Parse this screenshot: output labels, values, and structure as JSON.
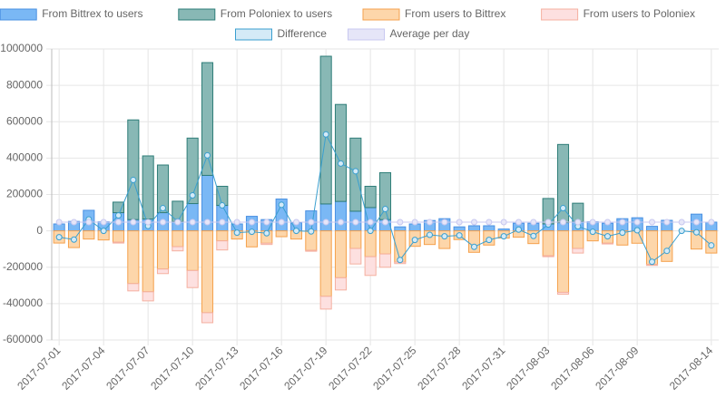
{
  "chart_data": {
    "type": "bar",
    "categories": [
      "2017-07-01",
      null,
      null,
      "2017-07-04",
      null,
      null,
      "2017-07-07",
      null,
      null,
      "2017-07-10",
      null,
      null,
      "2017-07-13",
      null,
      null,
      "2017-07-16",
      null,
      null,
      "2017-07-19",
      null,
      null,
      "2017-07-22",
      null,
      null,
      "2017-07-25",
      null,
      null,
      "2017-07-28",
      null,
      null,
      "2017-07-31",
      null,
      null,
      "2017-08-03",
      null,
      null,
      "2017-08-06",
      null,
      null,
      "2017-08-09",
      null,
      null,
      null,
      null,
      "2017-08-14"
    ],
    "series": [
      {
        "name": "From Bittrex to users",
        "color": "#7ab8f5",
        "border": "#4a90e2",
        "stack": "pos",
        "values": [
          38000,
          52000,
          113000,
          50000,
          100000,
          62000,
          65000,
          100000,
          50000,
          150000,
          305000,
          140000,
          38000,
          80000,
          62000,
          175000,
          45000,
          110000,
          148000,
          162000,
          108000,
          128000,
          62000,
          22000,
          38000,
          57000,
          67000,
          22000,
          28000,
          28000,
          10000,
          42000,
          42000,
          38000,
          45000,
          50000,
          50000,
          42000,
          67000,
          72000,
          25000,
          58000,
          0,
          92000,
          48000
        ]
      },
      {
        "name": "From Poloniex to users",
        "color": "#88b8b5",
        "border": "#2e7d78",
        "stack": "pos",
        "values": [
          0,
          0,
          0,
          0,
          58000,
          548000,
          347000,
          262000,
          113000,
          360000,
          620000,
          105000,
          0,
          0,
          0,
          0,
          0,
          0,
          812000,
          533000,
          402000,
          117000,
          258000,
          0,
          0,
          0,
          0,
          0,
          0,
          0,
          0,
          0,
          0,
          140000,
          430000,
          102000,
          0,
          0,
          0,
          0,
          0,
          0,
          0,
          0,
          0
        ]
      },
      {
        "name": "From users to Bittrex",
        "color": "#fdd6aa",
        "border": "#f5a14d",
        "stack": "neg",
        "values": [
          -67000,
          -92000,
          -45000,
          -50000,
          -62000,
          -290000,
          -335000,
          -210000,
          -87000,
          -218000,
          -450000,
          -55000,
          -45000,
          -88000,
          -68000,
          -32000,
          -45000,
          -107000,
          -360000,
          -258000,
          -97000,
          -142000,
          -127000,
          -172000,
          -85000,
          -75000,
          -97000,
          -48000,
          -118000,
          -78000,
          -40000,
          -35000,
          -70000,
          -137000,
          -338000,
          -97000,
          -55000,
          -68000,
          -78000,
          -68000,
          -185000,
          -168000,
          0,
          -100000,
          -122000
        ]
      },
      {
        "name": "From users to Poloniex",
        "color": "#fde0e0",
        "border": "#f5b0a0",
        "stack": "neg",
        "values": [
          0,
          0,
          0,
          0,
          -5000,
          -40000,
          -50000,
          -25000,
          -23000,
          -94000,
          -55000,
          -50000,
          0,
          0,
          -7000,
          0,
          0,
          -5000,
          -70000,
          -67000,
          -85000,
          -103000,
          -73000,
          -8000,
          0,
          0,
          0,
          0,
          0,
          0,
          0,
          0,
          0,
          -5000,
          -10000,
          -25000,
          0,
          -4000,
          0,
          0,
          -5000,
          0,
          0,
          0,
          0
        ]
      },
      {
        "name": "Difference",
        "color": "#d4eaf7",
        "border": "#3a9fcf",
        "kind": "line",
        "values": [
          -35000,
          -48000,
          63000,
          0,
          85000,
          280000,
          27000,
          125000,
          52000,
          195000,
          415000,
          140000,
          -10000,
          -5000,
          -13000,
          143000,
          0,
          -3000,
          530000,
          370000,
          328000,
          0,
          120000,
          -160000,
          -50000,
          -22000,
          -30000,
          -25000,
          -88000,
          -50000,
          -30000,
          7000,
          -28000,
          35000,
          125000,
          25000,
          -5000,
          -30000,
          -10000,
          3000,
          -170000,
          -110000,
          0,
          -8000,
          -80000
        ]
      },
      {
        "name": "Average per day",
        "color": "#e6e6f8",
        "border": "#c8c8f0",
        "kind": "line",
        "values": [
          48000,
          48000,
          48000,
          48000,
          48000,
          48000,
          48000,
          48000,
          48000,
          48000,
          48000,
          48000,
          48000,
          48000,
          48000,
          48000,
          48000,
          48000,
          48000,
          48000,
          48000,
          48000,
          48000,
          48000,
          48000,
          48000,
          48000,
          48000,
          48000,
          48000,
          48000,
          48000,
          48000,
          48000,
          48000,
          48000,
          48000,
          48000,
          48000,
          48000,
          48000,
          48000,
          48000,
          48000,
          48000
        ]
      }
    ],
    "ylim": [
      -600000,
      1000000
    ],
    "yticks": [
      -600000,
      -400000,
      -200000,
      0,
      200000,
      400000,
      600000,
      800000,
      1000000
    ],
    "grid": true,
    "legend": "top"
  }
}
